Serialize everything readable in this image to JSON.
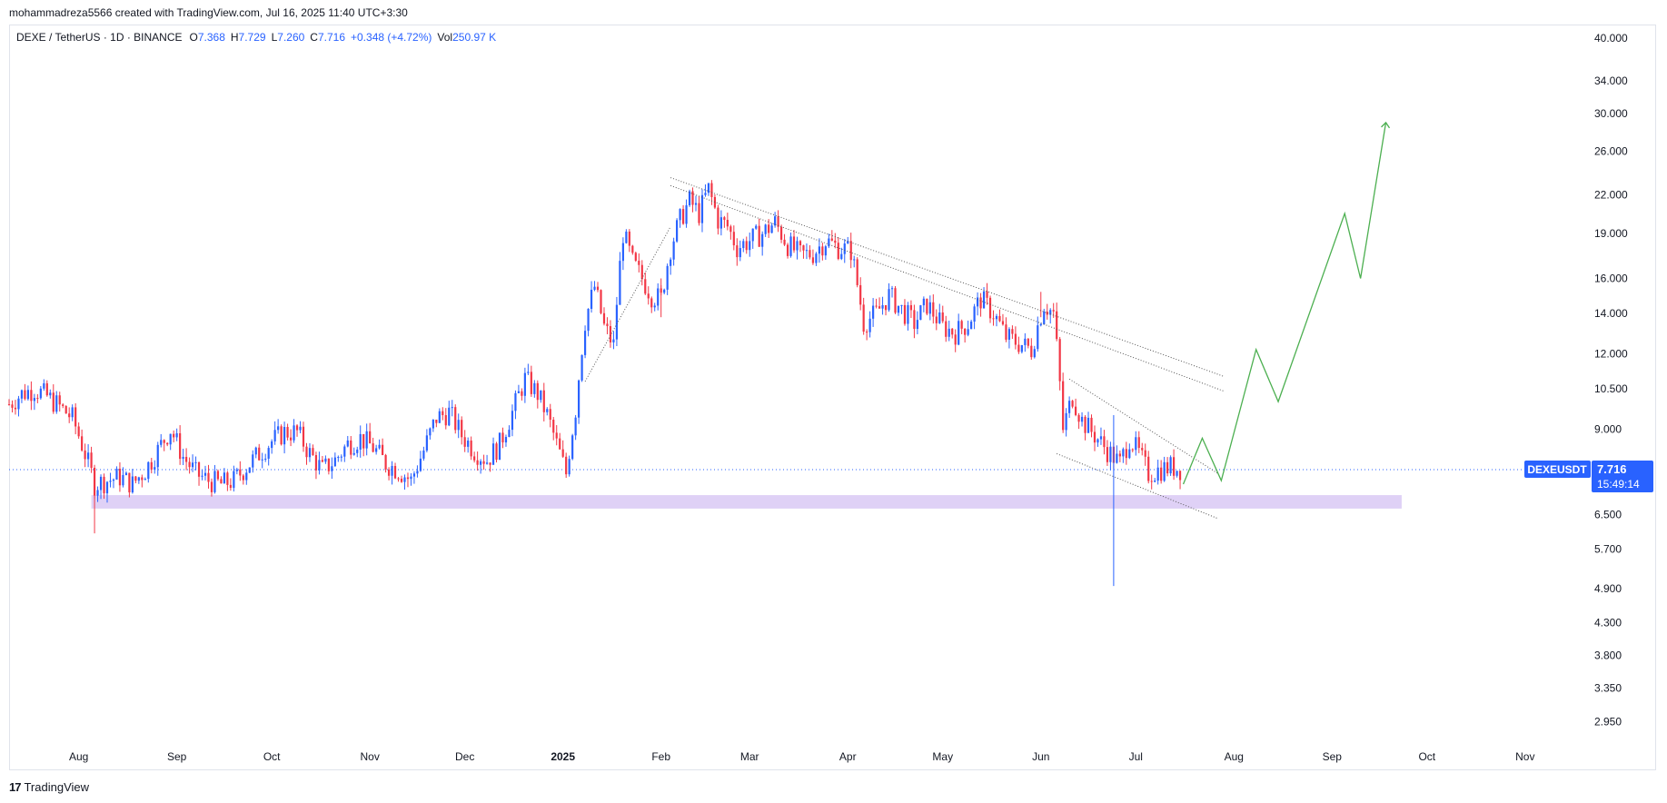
{
  "header": {
    "credit": "mohammadreza5566 created with TradingView.com, Jul 16, 2025 11:40 UTC+3:30"
  },
  "legend": {
    "symbol": "DEXE / TetherUS · 1D · BINANCE",
    "o_label": "O",
    "o_value": "7.368",
    "h_label": "H",
    "h_value": "7.729",
    "l_label": "L",
    "l_value": "7.260",
    "c_label": "C",
    "c_value": "7.716",
    "change": "+0.348 (+4.72%)",
    "vol_label": "Vol",
    "vol_value": "250.97 K"
  },
  "price_tag": {
    "ticker": "DEXEUSDT",
    "price": "7.716",
    "countdown": "15:49:14"
  },
  "footer": {
    "brand": "TradingView",
    "logo_glyph": "17"
  },
  "colors": {
    "up": "#2962ff",
    "down": "#f23645",
    "projection": "#4caf50",
    "support_zone": "#d9c9f5",
    "trendline": "#555555",
    "last_price": "#2962ff"
  },
  "chart_data": {
    "type": "candlestick",
    "y_scale": "log",
    "ylim": [
      2.7,
      42
    ],
    "y_ticks": [
      "40.000",
      "34.000",
      "30.000",
      "26.000",
      "22.000",
      "19.000",
      "16.000",
      "14.000",
      "12.000",
      "10.500",
      "9.000",
      "7.716",
      "6.500",
      "5.700",
      "4.900",
      "4.300",
      "3.800",
      "3.350",
      "2.950"
    ],
    "x_ticks": [
      {
        "label": "Aug",
        "date": "2024-08-01"
      },
      {
        "label": "Sep",
        "date": "2024-09-01"
      },
      {
        "label": "Oct",
        "date": "2024-10-01"
      },
      {
        "label": "Nov",
        "date": "2024-11-01"
      },
      {
        "label": "Dec",
        "date": "2024-12-01"
      },
      {
        "label": "2025",
        "date": "2025-01-01",
        "bold": true
      },
      {
        "label": "Feb",
        "date": "2025-02-01"
      },
      {
        "label": "Mar",
        "date": "2025-03-01"
      },
      {
        "label": "Apr",
        "date": "2025-04-01"
      },
      {
        "label": "May",
        "date": "2025-05-01"
      },
      {
        "label": "Jun",
        "date": "2025-06-01"
      },
      {
        "label": "Jul",
        "date": "2025-07-01"
      },
      {
        "label": "Aug",
        "date": "2025-08-01"
      },
      {
        "label": "Sep",
        "date": "2025-09-01"
      },
      {
        "label": "Oct",
        "date": "2025-10-01"
      },
      {
        "label": "Nov",
        "date": "2025-11-01"
      }
    ],
    "xlim": [
      "2024-07-10",
      "2025-11-20"
    ],
    "price_path": [
      [
        "2024-07-10",
        9.9
      ],
      [
        "2024-07-14",
        10.3
      ],
      [
        "2024-07-18",
        10.5
      ],
      [
        "2024-07-22",
        10.2
      ],
      [
        "2024-07-26",
        9.8
      ],
      [
        "2024-07-30",
        9.4
      ],
      [
        "2024-08-03",
        8.2
      ],
      [
        "2024-08-06",
        7.3
      ],
      [
        "2024-08-10",
        7.4
      ],
      [
        "2024-08-14",
        7.5
      ],
      [
        "2024-08-18",
        7.3
      ],
      [
        "2024-08-22",
        7.7
      ],
      [
        "2024-08-26",
        8.3
      ],
      [
        "2024-08-30",
        9.0
      ],
      [
        "2024-09-03",
        8.1
      ],
      [
        "2024-09-07",
        7.6
      ],
      [
        "2024-09-11",
        7.4
      ],
      [
        "2024-09-15",
        7.3
      ],
      [
        "2024-09-19",
        7.4
      ],
      [
        "2024-09-23",
        7.8
      ],
      [
        "2024-09-27",
        8.2
      ],
      [
        "2024-10-01",
        8.6
      ],
      [
        "2024-10-05",
        8.9
      ],
      [
        "2024-10-09",
        8.9
      ],
      [
        "2024-10-13",
        8.2
      ],
      [
        "2024-10-17",
        7.7
      ],
      [
        "2024-10-21",
        8.0
      ],
      [
        "2024-10-25",
        8.5
      ],
      [
        "2024-10-29",
        8.7
      ],
      [
        "2024-11-02",
        8.4
      ],
      [
        "2024-11-06",
        7.9
      ],
      [
        "2024-11-10",
        7.7
      ],
      [
        "2024-11-14",
        7.4
      ],
      [
        "2024-11-18",
        8.3
      ],
      [
        "2024-11-22",
        9.4
      ],
      [
        "2024-11-26",
        9.6
      ],
      [
        "2024-11-30",
        8.8
      ],
      [
        "2024-12-04",
        8.3
      ],
      [
        "2024-12-08",
        8.0
      ],
      [
        "2024-12-12",
        8.5
      ],
      [
        "2024-12-16",
        9.6
      ],
      [
        "2024-12-20",
        10.9
      ],
      [
        "2024-12-24",
        10.3
      ],
      [
        "2024-12-27",
        9.5
      ],
      [
        "2024-12-30",
        8.5
      ],
      [
        "2025-01-02",
        7.6
      ],
      [
        "2025-01-05",
        9.7
      ],
      [
        "2025-01-08",
        13.6
      ],
      [
        "2025-01-11",
        15.5
      ],
      [
        "2025-01-14",
        13.3
      ],
      [
        "2025-01-17",
        12.4
      ],
      [
        "2025-01-20",
        19.0
      ],
      [
        "2025-01-23",
        17.0
      ],
      [
        "2025-01-26",
        16.0
      ],
      [
        "2025-01-29",
        15.0
      ],
      [
        "2025-02-01",
        14.8
      ],
      [
        "2025-02-04",
        18.0
      ],
      [
        "2025-02-07",
        20.0
      ],
      [
        "2025-02-10",
        21.5
      ],
      [
        "2025-02-13",
        20.5
      ],
      [
        "2025-02-16",
        22.5
      ],
      [
        "2025-02-19",
        20.0
      ],
      [
        "2025-02-22",
        19.5
      ],
      [
        "2025-02-25",
        18.0
      ],
      [
        "2025-03-01",
        18.5
      ],
      [
        "2025-03-05",
        19.0
      ],
      [
        "2025-03-09",
        19.8
      ],
      [
        "2025-03-13",
        18.2
      ],
      [
        "2025-03-17",
        17.5
      ],
      [
        "2025-03-21",
        17.6
      ],
      [
        "2025-03-25",
        18.5
      ],
      [
        "2025-03-29",
        18.0
      ],
      [
        "2025-04-02",
        17.8
      ],
      [
        "2025-04-06",
        13.5
      ],
      [
        "2025-04-10",
        14.0
      ],
      [
        "2025-04-14",
        15.0
      ],
      [
        "2025-04-18",
        14.2
      ],
      [
        "2025-04-22",
        13.5
      ],
      [
        "2025-04-26",
        14.5
      ],
      [
        "2025-05-01",
        13.3
      ],
      [
        "2025-05-05",
        13.0
      ],
      [
        "2025-05-09",
        13.5
      ],
      [
        "2025-05-13",
        14.8
      ],
      [
        "2025-05-17",
        14.0
      ],
      [
        "2025-05-21",
        12.8
      ],
      [
        "2025-05-25",
        12.5
      ],
      [
        "2025-05-29",
        12.2
      ],
      [
        "2025-06-02",
        14.5
      ],
      [
        "2025-06-05",
        14.0
      ],
      [
        "2025-06-08",
        9.0
      ],
      [
        "2025-06-11",
        10.2
      ],
      [
        "2025-06-14",
        9.3
      ],
      [
        "2025-06-18",
        8.8
      ],
      [
        "2025-06-22",
        8.3
      ],
      [
        "2025-06-26",
        7.9
      ],
      [
        "2025-06-29",
        8.7
      ],
      [
        "2025-07-02",
        8.2
      ],
      [
        "2025-07-05",
        7.6
      ],
      [
        "2025-07-08",
        7.7
      ],
      [
        "2025-07-12",
        7.8
      ],
      [
        "2025-07-16",
        7.716
      ]
    ],
    "support_zone": {
      "from": "2024-08-05",
      "to": "2025-09-23",
      "low": 6.65,
      "high": 7.0
    },
    "trendlines": [
      {
        "from": [
          "2025-02-04",
          23.5
        ],
        "to": [
          "2025-07-29",
          11.0
        ],
        "style": "dotted"
      },
      {
        "from": [
          "2025-02-04",
          22.8
        ],
        "to": [
          "2025-07-29",
          10.4
        ],
        "style": "dotted"
      },
      {
        "from": [
          "2025-01-08",
          10.8
        ],
        "to": [
          "2025-02-04",
          19.5
        ],
        "style": "dotted"
      },
      {
        "from": [
          "2025-06-10",
          10.9
        ],
        "to": [
          "2025-07-27",
          7.6
        ],
        "style": "dotted"
      },
      {
        "from": [
          "2025-06-06",
          8.2
        ],
        "to": [
          "2025-07-27",
          6.4
        ],
        "style": "dotted"
      }
    ],
    "projection": [
      [
        "2025-07-16",
        7.3
      ],
      [
        "2025-07-22",
        8.7
      ],
      [
        "2025-07-28",
        7.4
      ],
      [
        "2025-08-08",
        12.2
      ],
      [
        "2025-08-15",
        10.0
      ],
      [
        "2025-09-05",
        20.5
      ],
      [
        "2025-09-10",
        16.0
      ],
      [
        "2025-09-18",
        29.0
      ]
    ],
    "last_price": 7.716
  }
}
